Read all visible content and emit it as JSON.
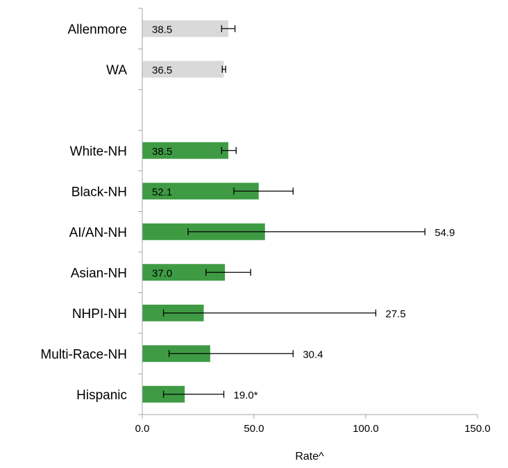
{
  "chart_data": {
    "type": "bar",
    "orientation": "horizontal",
    "xlabel": "Rate^",
    "ylabel": "",
    "title": "",
    "xlim": [
      0,
      150
    ],
    "xticks": [
      0,
      50,
      100,
      150
    ],
    "xtick_labels": [
      "0.0",
      "50.0",
      "100.0",
      "150.0"
    ],
    "grid": false,
    "legend": "none",
    "categories": [
      "Allenmore",
      "WA",
      "",
      "White-NH",
      "Black-NH",
      "AI/AN-NH",
      "Asian-NH",
      "NHPI-NH",
      "Multi-Race-NH",
      "Hispanic"
    ],
    "values": [
      38.5,
      36.5,
      null,
      38.5,
      52.1,
      54.9,
      37.0,
      27.5,
      30.4,
      19.0
    ],
    "data_labels": [
      "38.5",
      "36.5",
      "",
      "38.5",
      "52.1",
      "54.9",
      "37.0",
      "27.5",
      "30.4",
      "19.0*"
    ],
    "error_low": [
      35.5,
      35.8,
      null,
      35.5,
      41.0,
      20.5,
      28.5,
      9.5,
      12.0,
      9.5
    ],
    "error_high": [
      41.5,
      37.3,
      null,
      42.0,
      67.5,
      126.5,
      48.5,
      104.5,
      67.5,
      36.5
    ],
    "bar_colors": [
      "#d9d9d9",
      "#d9d9d9",
      null,
      "#3e9b44",
      "#3e9b44",
      "#3e9b44",
      "#3e9b44",
      "#3e9b44",
      "#3e9b44",
      "#3e9b44"
    ],
    "label_inside": [
      true,
      true,
      false,
      true,
      true,
      false,
      true,
      false,
      false,
      false
    ]
  },
  "colors": {
    "reference_bar": "#d9d9d9",
    "group_bar": "#3e9b44",
    "axis": "#a6a6a6",
    "error_bar": "#000000"
  }
}
